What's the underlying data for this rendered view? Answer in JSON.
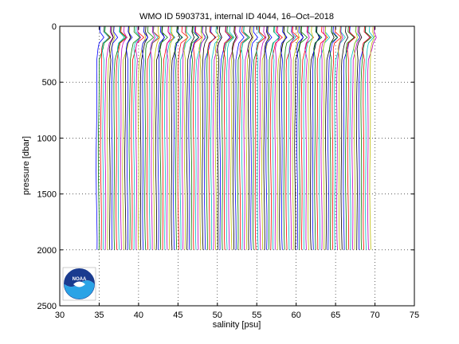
{
  "chart_data": {
    "type": "line",
    "title": "WMO ID 5903731, internal ID 4044, 16–Oct–2018",
    "xlabel": "salinity [psu]",
    "ylabel": "pressure [dbar]",
    "xlim": [
      30,
      75
    ],
    "ylim": [
      0,
      2500
    ],
    "y_reversed": true,
    "x_ticks": [
      30,
      35,
      40,
      45,
      50,
      55,
      60,
      65,
      70,
      75
    ],
    "y_ticks": [
      0,
      500,
      1000,
      1500,
      2000,
      2500
    ],
    "grid": "dotted",
    "profile_count": 125,
    "profile_offset_step": 0.28,
    "pressure_levels": [
      0,
      50,
      100,
      150,
      200,
      300,
      400,
      500,
      700,
      900,
      1100,
      1300,
      1500,
      1700,
      1900,
      2000
    ],
    "base_profile_salinity": [
      35.15,
      35.1,
      35.3,
      35.0,
      34.85,
      34.75,
      34.7,
      34.68,
      34.66,
      34.65,
      34.65,
      34.66,
      34.67,
      34.68,
      34.69,
      34.7
    ],
    "colors": [
      "#0000ff",
      "#008000",
      "#ff0000",
      "#00bfbf",
      "#bf00bf",
      "#bfbf00",
      "#000000"
    ]
  },
  "logo": {
    "name": "NOAA",
    "text": "NOAA"
  }
}
